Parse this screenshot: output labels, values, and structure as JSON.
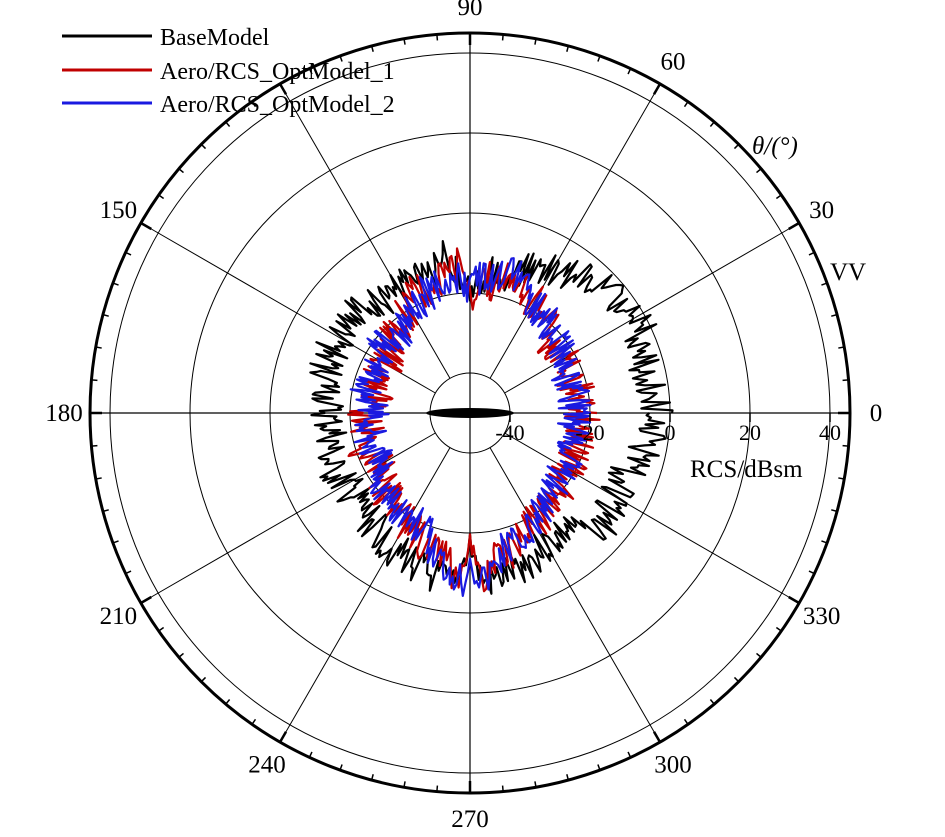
{
  "chart_data": {
    "type": "polar-line",
    "title": "",
    "polarization": "VV",
    "angular_axis": {
      "label": "θ/(°)",
      "range_deg": [
        0,
        360
      ],
      "tick_labels": [
        "0",
        "30",
        "60",
        "90",
        "150",
        "180",
        "210",
        "240",
        "270",
        "300",
        "330"
      ],
      "tick_values_deg": [
        0,
        30,
        60,
        90,
        150,
        180,
        210,
        240,
        270,
        300,
        330
      ]
    },
    "radial_axis": {
      "label": "RCS/dBsm",
      "range": [
        -50,
        45
      ],
      "tick_labels": [
        "-40",
        "-20",
        "0",
        "20",
        "40"
      ],
      "tick_values": [
        -40,
        -20,
        0,
        20,
        40
      ],
      "grid": true
    },
    "legend": {
      "position": "top-left",
      "entries": [
        "BaseModel",
        "Aero/RCS_OptModel_1",
        "Aero/RCS_OptModel_2"
      ]
    },
    "series": [
      {
        "name": "BaseModel",
        "color": "#000000",
        "angles_deg": [
          0,
          10,
          20,
          30,
          40,
          50,
          60,
          70,
          75,
          80,
          85,
          88,
          90,
          92,
          95,
          100,
          105,
          110,
          115,
          120,
          130,
          140,
          150,
          160,
          170,
          180,
          190,
          200,
          210,
          220,
          230,
          240,
          250,
          255,
          260,
          265,
          268,
          270,
          272,
          275,
          280,
          285,
          290,
          300,
          310,
          320,
          330,
          340,
          350
        ],
        "values_dBsm": [
          -3,
          -5,
          -4,
          -2,
          -4,
          -6,
          -9,
          -12,
          -14,
          -14,
          -16,
          -20,
          -20,
          -18,
          -14,
          -10,
          -14,
          -14,
          -14,
          -14,
          -14,
          -12,
          -12,
          -12,
          -14,
          -14,
          -15,
          -12,
          -14,
          -14,
          -13,
          -11,
          -10,
          -8,
          -8,
          -6,
          -14,
          -18,
          -12,
          -7,
          -8,
          -9,
          -10,
          -12,
          -12,
          -6,
          -9,
          -8,
          -5
        ]
      },
      {
        "name": "Aero/RCS_OptModel_1",
        "color": "#C00000",
        "angles_deg": [
          0,
          10,
          20,
          30,
          40,
          50,
          60,
          70,
          75,
          80,
          85,
          88,
          90,
          92,
          95,
          100,
          105,
          110,
          115,
          120,
          130,
          140,
          150,
          160,
          170,
          180,
          190,
          200,
          210,
          220,
          230,
          240,
          250,
          255,
          260,
          265,
          268,
          270,
          272,
          275,
          280,
          285,
          290,
          300,
          310,
          320,
          330,
          340,
          350
        ],
        "values_dBsm": [
          -22,
          -21,
          -24,
          -22,
          -24,
          -20,
          -18,
          -16,
          -14,
          -18,
          -14,
          -20,
          -20,
          -18,
          -12,
          -16,
          -15,
          -18,
          -16,
          -20,
          -22,
          -24,
          -26,
          -24,
          -26,
          -24,
          -24,
          -22,
          -24,
          -22,
          -20,
          -18,
          -16,
          -14,
          -14,
          -8,
          -14,
          -20,
          -12,
          -8,
          -14,
          -14,
          -16,
          -18,
          -20,
          -20,
          -22,
          -22,
          -22
        ]
      },
      {
        "name": "Aero/RCS_OptModel_2",
        "color": "#1A1AE0",
        "angles_deg": [
          0,
          10,
          20,
          30,
          40,
          50,
          60,
          70,
          75,
          80,
          85,
          88,
          90,
          92,
          95,
          100,
          105,
          110,
          115,
          120,
          130,
          140,
          150,
          160,
          170,
          180,
          190,
          200,
          210,
          220,
          230,
          240,
          250,
          255,
          260,
          265,
          268,
          270,
          272,
          275,
          280,
          285,
          290,
          300,
          310,
          320,
          330,
          340,
          350
        ],
        "values_dBsm": [
          -24,
          -23,
          -24,
          -24,
          -22,
          -20,
          -18,
          -14,
          -14,
          -16,
          -16,
          -16,
          -20,
          -18,
          -16,
          -18,
          -18,
          -18,
          -20,
          -20,
          -24,
          -22,
          -24,
          -24,
          -24,
          -26,
          -24,
          -24,
          -24,
          -22,
          -20,
          -20,
          -18,
          -14,
          -12,
          -10,
          -8,
          -16,
          -10,
          -8,
          -12,
          -16,
          -16,
          -18,
          -20,
          -22,
          -22,
          -24,
          -24
        ]
      }
    ]
  }
}
